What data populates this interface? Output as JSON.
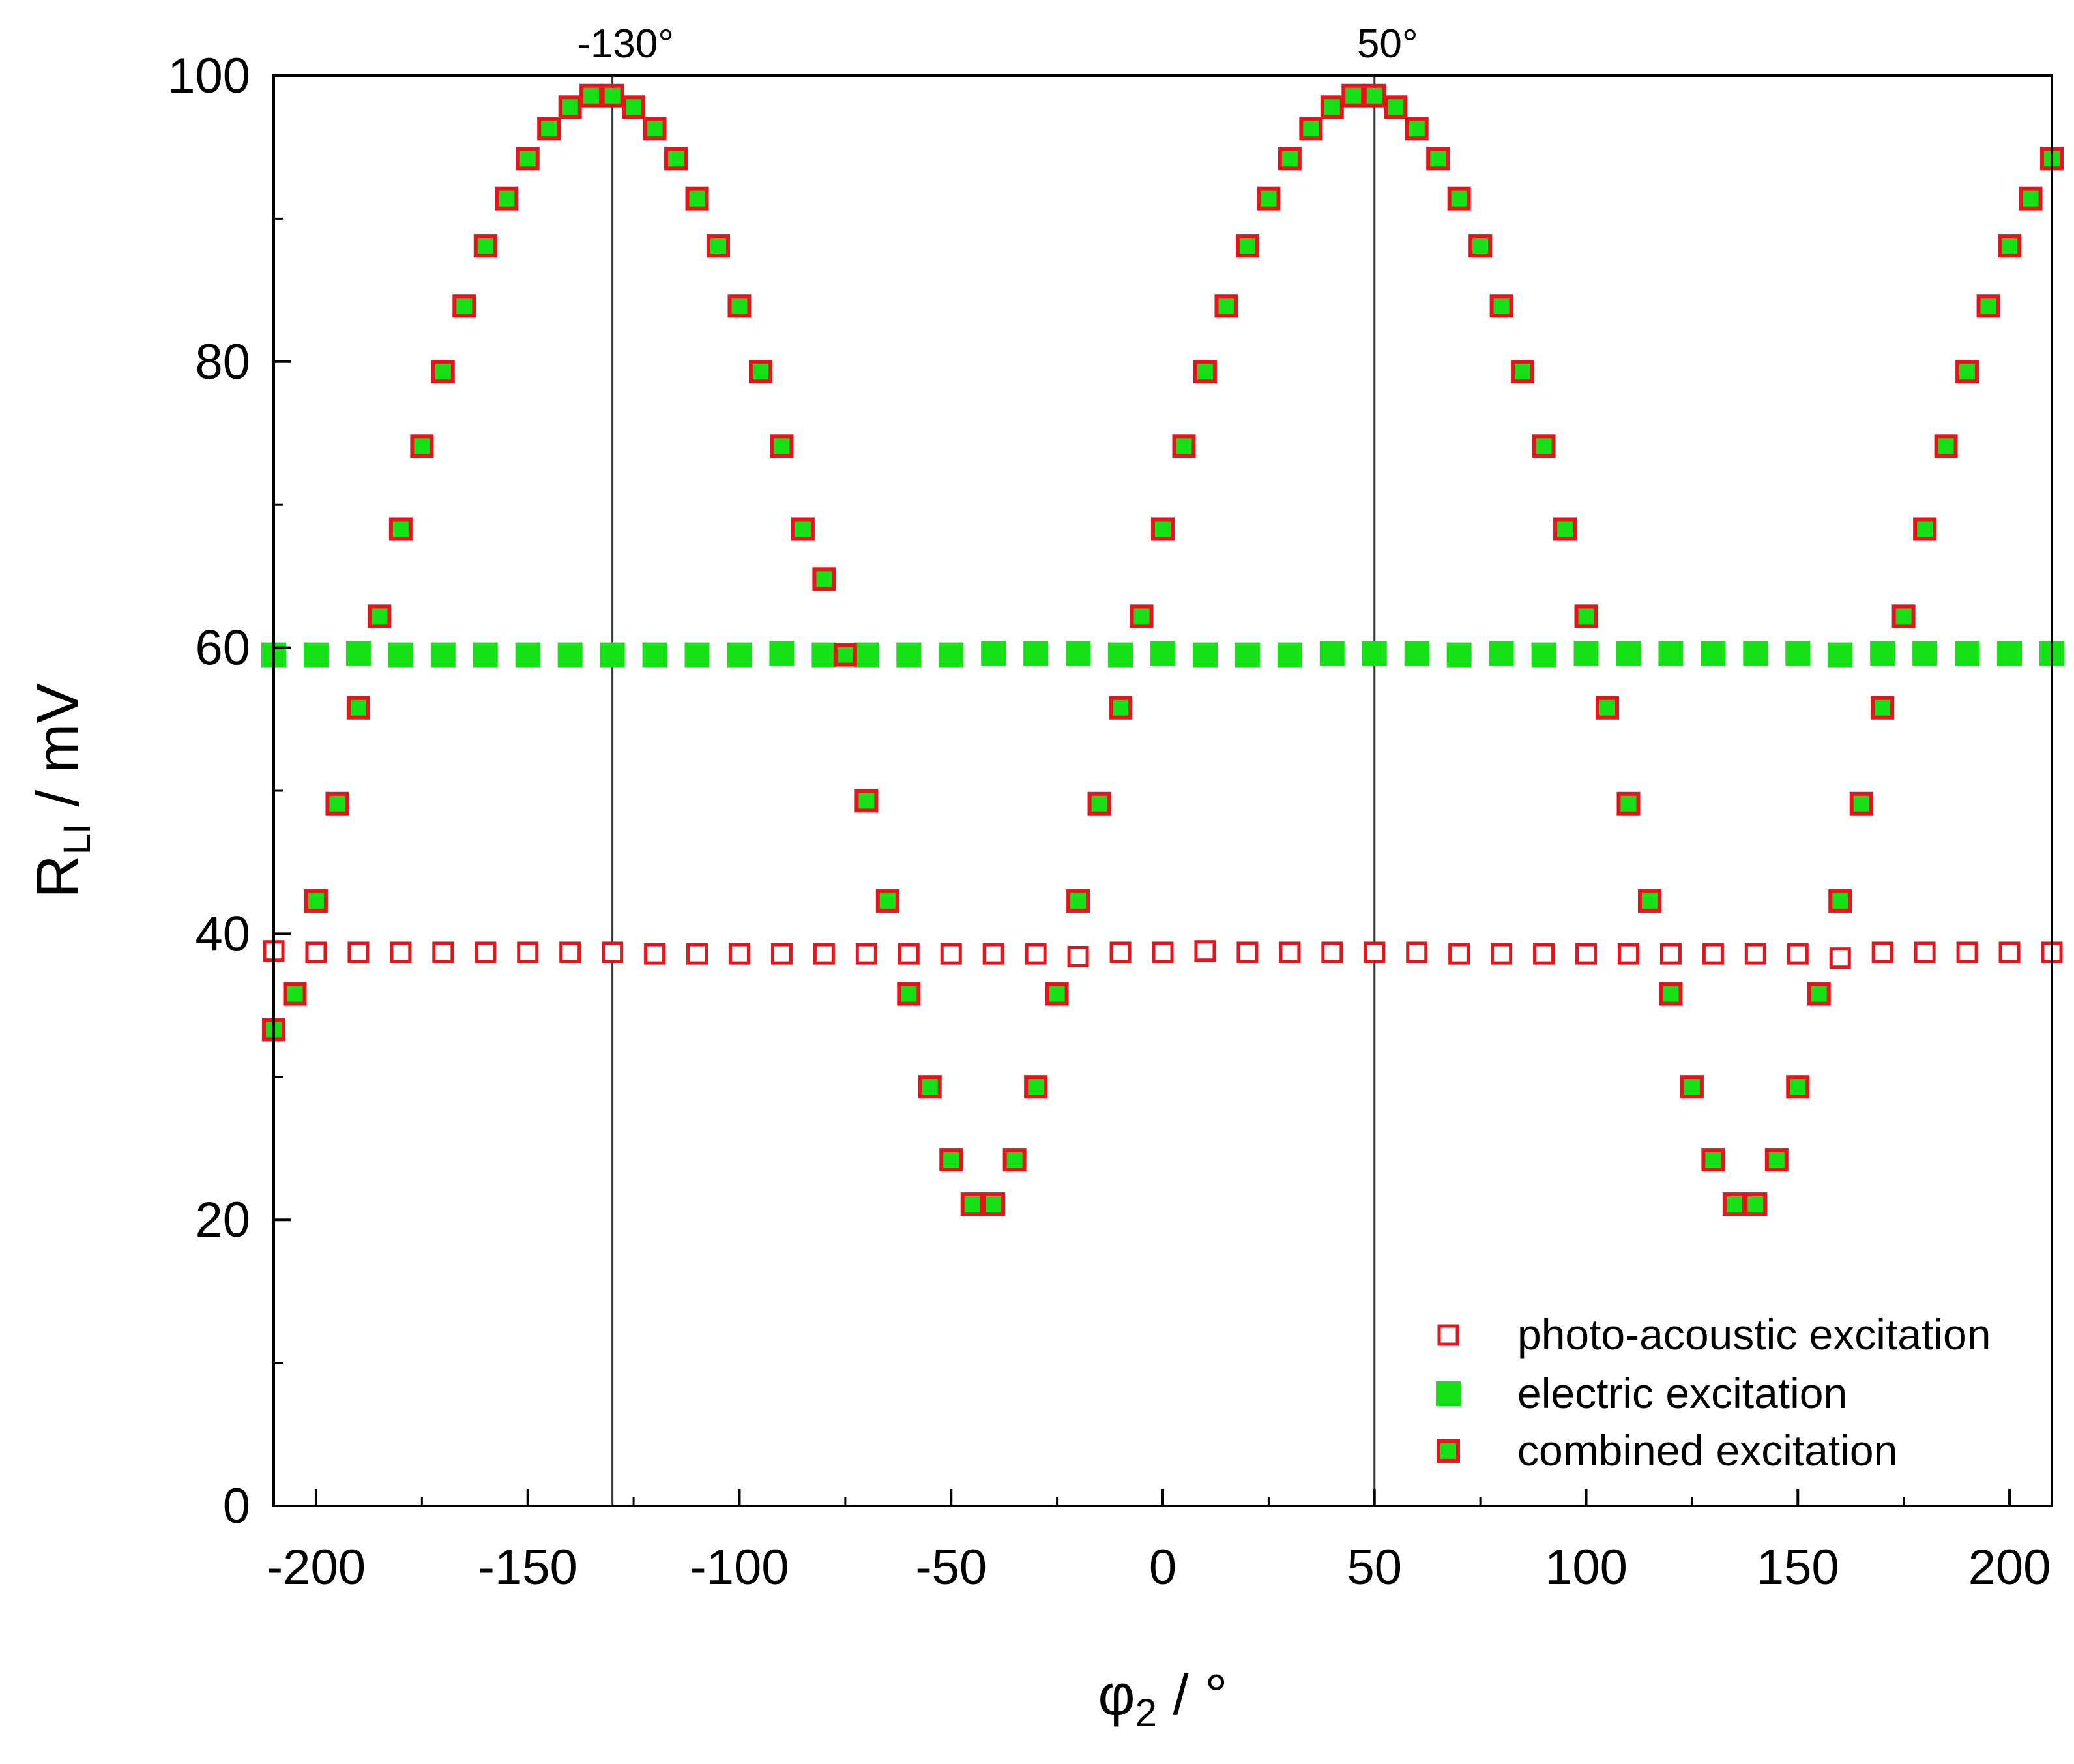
{
  "chart_data": {
    "type": "scatter",
    "title": "",
    "xlabel": "φ2 / °",
    "xlabel_parts": {
      "base": "φ",
      "sub": "2",
      "rest": " / °"
    },
    "ylabel": "RLI / mV",
    "ylabel_parts": {
      "base": "R",
      "sub": "LI",
      "rest": " / mV"
    },
    "xlim": [
      -210,
      210
    ],
    "ylim": [
      0,
      100
    ],
    "x_ticks": [
      -200,
      -150,
      -100,
      -50,
      0,
      50,
      100,
      150,
      200
    ],
    "x_tick_labels": [
      "-200",
      "-150",
      "-100",
      "-50",
      "0",
      "50",
      "100",
      "150",
      "200"
    ],
    "y_ticks": [
      0,
      20,
      40,
      60,
      80,
      100
    ],
    "y_tick_labels": [
      "0",
      "20",
      "40",
      "60",
      "80",
      "100"
    ],
    "grid": false,
    "legend_position": "bottom-right",
    "annotations": [
      {
        "x": -130,
        "label": "-130°"
      },
      {
        "x": 50,
        "label": "50°"
      }
    ],
    "series": [
      {
        "name": "photo-acoustic excitation",
        "marker": "open-square",
        "color": "#e8141b",
        "x": [
          -210,
          -200,
          -190,
          -180,
          -170,
          -160,
          -150,
          -140,
          -130,
          -120,
          -110,
          -100,
          -90,
          -80,
          -70,
          -60,
          -50,
          -40,
          -30,
          -20,
          -10,
          0,
          10,
          20,
          30,
          40,
          50,
          60,
          70,
          80,
          90,
          100,
          110,
          120,
          130,
          140,
          150,
          160,
          170,
          180,
          190,
          200,
          210
        ],
        "y": [
          38.8,
          38.7,
          38.7,
          38.7,
          38.7,
          38.7,
          38.7,
          38.7,
          38.7,
          38.6,
          38.6,
          38.6,
          38.6,
          38.6,
          38.6,
          38.6,
          38.6,
          38.6,
          38.6,
          38.4,
          38.7,
          38.7,
          38.8,
          38.7,
          38.7,
          38.7,
          38.7,
          38.7,
          38.6,
          38.6,
          38.6,
          38.6,
          38.6,
          38.6,
          38.6,
          38.6,
          38.6,
          38.3,
          38.7,
          38.7,
          38.7,
          38.7,
          38.7
        ]
      },
      {
        "name": "electric excitation",
        "marker": "filled-square",
        "color": "#16e016",
        "x": [
          -210,
          -200,
          -190,
          -180,
          -170,
          -160,
          -150,
          -140,
          -130,
          -120,
          -110,
          -100,
          -90,
          -80,
          -70,
          -60,
          -50,
          -40,
          -30,
          -20,
          -10,
          0,
          10,
          20,
          30,
          40,
          50,
          60,
          70,
          80,
          90,
          100,
          110,
          120,
          130,
          140,
          150,
          160,
          170,
          180,
          190,
          200,
          210
        ],
        "y": [
          59.5,
          59.5,
          59.6,
          59.5,
          59.5,
          59.5,
          59.5,
          59.5,
          59.5,
          59.5,
          59.5,
          59.5,
          59.6,
          59.5,
          59.5,
          59.5,
          59.5,
          59.6,
          59.6,
          59.6,
          59.5,
          59.6,
          59.5,
          59.5,
          59.5,
          59.6,
          59.6,
          59.6,
          59.5,
          59.6,
          59.5,
          59.6,
          59.6,
          59.6,
          59.6,
          59.6,
          59.6,
          59.5,
          59.6,
          59.6,
          59.6,
          59.6,
          59.6
        ]
      },
      {
        "name": "combined excitation",
        "marker": "filled-square-outlined",
        "color": "#16e016",
        "edge_color": "#e8141b",
        "x": [
          -210,
          -205,
          -200,
          -195,
          -190,
          -185,
          -180,
          -175,
          -170,
          -165,
          -160,
          -155,
          -150,
          -145,
          -140,
          -135,
          -130,
          -125,
          -120,
          -115,
          -110,
          -105,
          -100,
          -95,
          -90,
          -85,
          -80,
          -75,
          -70,
          -65,
          -60,
          -55,
          -50,
          -45,
          -40,
          -35,
          -30,
          -25,
          -20,
          -15,
          -10,
          -5,
          0,
          5,
          10,
          15,
          20,
          25,
          30,
          35,
          40,
          45,
          50,
          55,
          60,
          65,
          70,
          75,
          80,
          85,
          90,
          95,
          100,
          105,
          110,
          115,
          120,
          125,
          130,
          135,
          140,
          145,
          150,
          155,
          160,
          165,
          170,
          175,
          180,
          185,
          190,
          195,
          200,
          205,
          210
        ],
        "y": [
          33.3,
          35.8,
          42.3,
          49.1,
          55.8,
          62.2,
          68.3,
          74.1,
          79.3,
          83.9,
          88.1,
          91.4,
          94.2,
          96.3,
          97.8,
          98.6,
          98.6,
          97.8,
          96.3,
          94.2,
          91.4,
          88.1,
          83.9,
          79.3,
          74.1,
          68.3,
          64.8,
          59.5,
          49.3,
          42.3,
          35.8,
          29.3,
          24.2,
          21.1,
          21.1,
          24.2,
          29.3,
          35.8,
          42.3,
          49.1,
          55.8,
          62.2,
          68.3,
          74.1,
          79.3,
          83.9,
          88.1,
          91.4,
          94.2,
          96.3,
          97.8,
          98.6,
          98.6,
          97.8,
          96.3,
          94.2,
          91.4,
          88.1,
          83.9,
          79.3,
          74.1,
          68.3,
          62.2,
          55.8,
          49.1,
          42.3,
          35.8,
          29.3,
          24.2,
          21.1,
          21.1,
          24.2,
          29.3,
          35.8,
          42.3,
          49.1,
          55.8,
          62.2,
          68.3,
          74.1,
          79.3,
          83.9,
          88.1,
          91.4,
          94.2
        ]
      }
    ]
  }
}
